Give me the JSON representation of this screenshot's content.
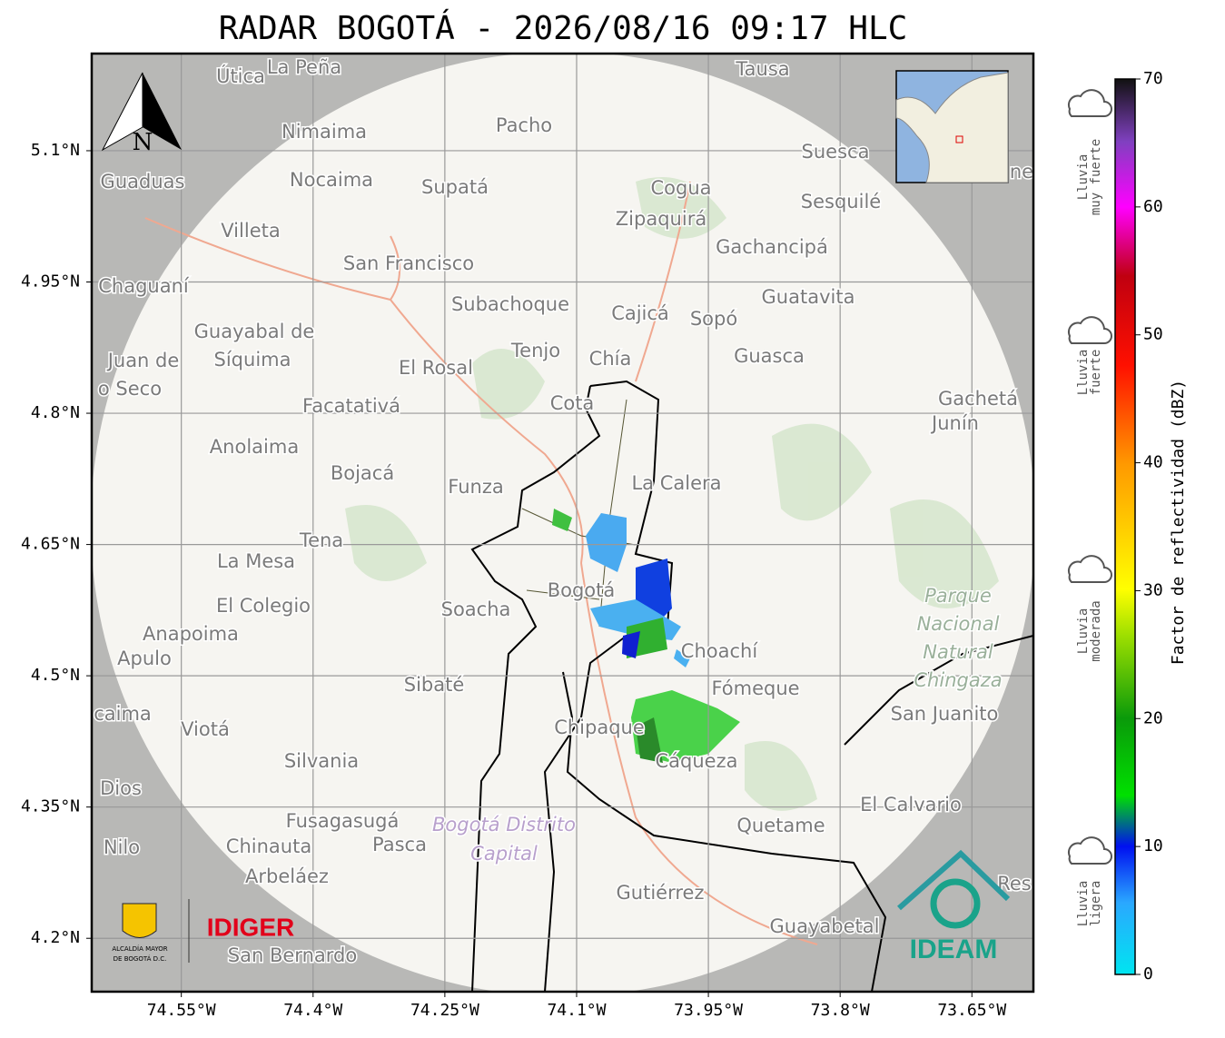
{
  "title": "RADAR BOGOTÁ - 2026/08/16 09:17 HLC",
  "map": {
    "north_label": "N",
    "lon_lim": [
      -74.652,
      -73.58
    ],
    "lat_lim": [
      4.139,
      5.211
    ],
    "lon_ticks": [
      {
        "value": -74.55,
        "label": "74.55°W"
      },
      {
        "value": -74.4,
        "label": "74.4°W"
      },
      {
        "value": -74.25,
        "label": "74.25°W"
      },
      {
        "value": -74.1,
        "label": "74.1°W"
      },
      {
        "value": -73.95,
        "label": "73.95°W"
      },
      {
        "value": -73.8,
        "label": "73.8°W"
      },
      {
        "value": -73.65,
        "label": "73.65°W"
      }
    ],
    "lat_ticks": [
      {
        "value": 5.1,
        "label": "5.1°N"
      },
      {
        "value": 4.95,
        "label": "4.95°N"
      },
      {
        "value": 4.8,
        "label": "4.8°N"
      },
      {
        "value": 4.65,
        "label": "4.65°N"
      },
      {
        "value": 4.5,
        "label": "4.5°N"
      },
      {
        "value": 4.35,
        "label": "4.35°N"
      },
      {
        "value": 4.2,
        "label": "4.2°N"
      }
    ],
    "places": [
      "Útica",
      "La Peña",
      "Tausa",
      "Pacho",
      "Nimaima",
      "Guaduas",
      "Nocaima",
      "Supatá",
      "Cogua",
      "Suesca",
      "Sesquilé",
      "Zipaquirá",
      "Villeta",
      "Gachancipá",
      "San Francisco",
      "Chaguaní",
      "Guatavita",
      "Subachoque",
      "Cajicá",
      "Sopó",
      "Guayabal de",
      "Síquima",
      "Juan de",
      "o Seco",
      "Tenjo",
      "Chía",
      "Guasca",
      "El Rosal",
      "Facatativá",
      "Cota",
      "Gachetá",
      "Junín",
      "Anolaima",
      "Bojacá",
      "Funza",
      "La Calera",
      "Tena",
      "La Mesa",
      "El Colegio",
      "Soacha",
      "Bogotá",
      "Anapoima",
      "Apulo",
      "Choachí",
      "Sibaté",
      "Fómeque",
      "San Juanito",
      "caima",
      "Viotá",
      "Chipaque",
      "Silvania",
      "Cáqueza",
      "Dios",
      "El Calvario",
      "Fusagasugá",
      "Quetame",
      "Nilo",
      "Chinauta",
      "Pasca",
      "Arbeláez",
      "Gutiérrez",
      "Res",
      "Guayabetal",
      "San Bernardo",
      "ne"
    ],
    "park_lines": [
      "Parque",
      "Nacional",
      "Natural",
      "Chingaza"
    ],
    "district_lines": [
      "Bogotá Distrito",
      "Capital"
    ]
  },
  "colorbar": {
    "label": "Factor de reflectividad (dBZ)",
    "lim": [
      0,
      70
    ],
    "ticks": [
      0,
      10,
      20,
      30,
      40,
      50,
      60,
      70
    ]
  },
  "rain_legend": [
    [
      "Lluvia",
      "muy fuerte"
    ],
    [
      "Lluvia",
      "fuerte"
    ],
    [
      "Lluvia",
      "moderada"
    ],
    [
      "Lluvia",
      "ligera"
    ]
  ],
  "logos": {
    "alcaldia": [
      "ALCALDÍA MAYOR",
      "DE BOGOTÁ D.C."
    ],
    "idiger": "IDIGER",
    "ideam": "IDEAM"
  }
}
